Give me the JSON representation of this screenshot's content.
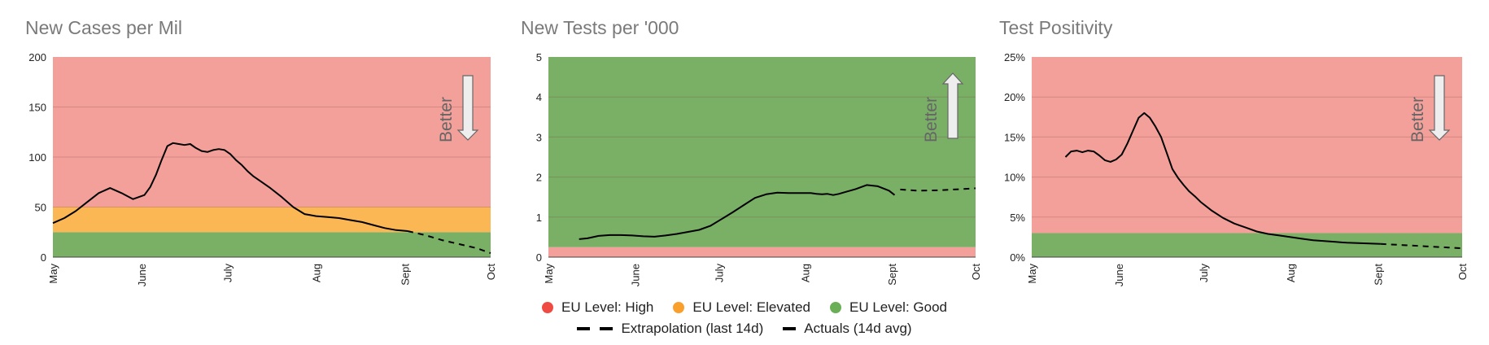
{
  "colors": {
    "high": "#f4a09a",
    "elevated": "#fcb755",
    "good": "#79b066",
    "high_dot": "#ef4b42",
    "elevated_dot": "#f9a02c",
    "good_dot": "#6aaf55",
    "title": "#7a7a7a",
    "line": "#000000"
  },
  "chart_data": [
    {
      "type": "line",
      "title": "New Cases per Mil",
      "ylim": [
        0,
        200
      ],
      "yticks": [
        0,
        50,
        100,
        150,
        200
      ],
      "ytick_labels": [
        "0",
        "50",
        "100",
        "150",
        "200"
      ],
      "xlim": [
        0,
        153
      ],
      "xticks": [
        0,
        31,
        61,
        92,
        123,
        153
      ],
      "xtick_labels": [
        "May",
        "June",
        "July",
        "Aug",
        "Sept",
        "Oct"
      ],
      "bands": [
        {
          "level": "good",
          "from": 0,
          "to": 25
        },
        {
          "level": "elevated",
          "from": 25,
          "to": 50
        },
        {
          "level": "high",
          "from": 50,
          "to": 200
        }
      ],
      "arrow": {
        "label": "Better",
        "direction": "down"
      },
      "series": [
        {
          "style": "solid",
          "x": [
            0,
            4,
            8,
            12,
            16,
            20,
            24,
            28,
            32,
            34,
            36,
            38,
            40,
            42,
            44,
            46,
            48,
            49,
            50,
            52,
            54,
            56,
            58,
            60,
            62,
            64,
            66,
            68,
            70,
            72,
            76,
            80,
            84,
            88,
            92,
            96,
            100,
            104,
            108,
            112,
            116,
            120,
            124
          ],
          "y": [
            34,
            39,
            46,
            55,
            64,
            69,
            64,
            58,
            62,
            70,
            82,
            97,
            111,
            114,
            113,
            112,
            113,
            111,
            109,
            106,
            105,
            107,
            108,
            107,
            103,
            97,
            92,
            86,
            81,
            77,
            69,
            60,
            50,
            43,
            41,
            40,
            39,
            37,
            35,
            32,
            29,
            27,
            26
          ]
        },
        {
          "style": "dashed",
          "x": [
            124,
            130,
            136,
            142,
            148,
            153
          ],
          "y": [
            26,
            22,
            17,
            13,
            9,
            4
          ]
        }
      ]
    },
    {
      "type": "line",
      "title": "New Tests per '000",
      "ylim": [
        0,
        5
      ],
      "yticks": [
        0,
        1,
        2,
        3,
        4,
        5
      ],
      "ytick_labels": [
        "0",
        "1",
        "2",
        "3",
        "4",
        "5"
      ],
      "xlim": [
        0,
        153
      ],
      "xticks": [
        0,
        31,
        61,
        92,
        123,
        153
      ],
      "xtick_labels": [
        "May",
        "June",
        "July",
        "Aug",
        "Sept",
        "Oct"
      ],
      "bands": [
        {
          "level": "high",
          "from": 0,
          "to": 0.25
        },
        {
          "level": "good",
          "from": 0.25,
          "to": 5
        }
      ],
      "arrow": {
        "label": "Better",
        "direction": "up"
      },
      "series": [
        {
          "style": "solid",
          "x": [
            11,
            14,
            18,
            22,
            26,
            30,
            34,
            38,
            42,
            46,
            50,
            54,
            58,
            62,
            66,
            70,
            74,
            78,
            82,
            86,
            90,
            94,
            96,
            98,
            100,
            102,
            104,
            106,
            110,
            112,
            114,
            118,
            122,
            124
          ],
          "y": [
            0.45,
            0.47,
            0.53,
            0.55,
            0.55,
            0.54,
            0.52,
            0.51,
            0.54,
            0.58,
            0.63,
            0.68,
            0.78,
            0.95,
            1.12,
            1.3,
            1.48,
            1.57,
            1.61,
            1.6,
            1.6,
            1.6,
            1.58,
            1.57,
            1.58,
            1.55,
            1.58,
            1.62,
            1.7,
            1.75,
            1.8,
            1.77,
            1.66,
            1.55
          ]
        },
        {
          "style": "dashed",
          "x": [
            126,
            132,
            140,
            148,
            153
          ],
          "y": [
            1.69,
            1.66,
            1.67,
            1.7,
            1.72
          ]
        }
      ]
    },
    {
      "type": "line",
      "title": "Test Positivity",
      "ylim": [
        0,
        25
      ],
      "yticks": [
        0,
        5,
        10,
        15,
        20,
        25
      ],
      "ytick_labels": [
        "0%",
        "5%",
        "10%",
        "15%",
        "20%",
        "25%"
      ],
      "xlim": [
        0,
        153
      ],
      "xticks": [
        0,
        31,
        61,
        92,
        123,
        153
      ],
      "xtick_labels": [
        "May",
        "June",
        "July",
        "Aug",
        "Sept",
        "Oct"
      ],
      "bands": [
        {
          "level": "good",
          "from": 0,
          "to": 3
        },
        {
          "level": "high",
          "from": 3,
          "to": 25
        }
      ],
      "arrow": {
        "label": "Better",
        "direction": "down"
      },
      "series": [
        {
          "style": "solid",
          "x": [
            12,
            14,
            16,
            18,
            20,
            22,
            24,
            26,
            28,
            30,
            32,
            34,
            36,
            38,
            40,
            42,
            44,
            46,
            48,
            50,
            52,
            54,
            56,
            58,
            60,
            64,
            68,
            72,
            76,
            80,
            84,
            88,
            92,
            96,
            100,
            104,
            108,
            112,
            116,
            120,
            124
          ],
          "y": [
            12.5,
            13.2,
            13.3,
            13.1,
            13.3,
            13.2,
            12.7,
            12.1,
            11.9,
            12.2,
            12.8,
            14.2,
            15.8,
            17.4,
            18.0,
            17.4,
            16.3,
            15.0,
            13.0,
            11.0,
            9.9,
            9.0,
            8.2,
            7.6,
            6.9,
            5.8,
            4.9,
            4.2,
            3.7,
            3.2,
            2.9,
            2.7,
            2.5,
            2.3,
            2.1,
            2.0,
            1.9,
            1.8,
            1.75,
            1.7,
            1.65
          ]
        },
        {
          "style": "dashed",
          "x": [
            124,
            132,
            140,
            148,
            153
          ],
          "y": [
            1.65,
            1.5,
            1.35,
            1.2,
            1.1
          ]
        }
      ]
    }
  ],
  "legend": {
    "row1": [
      {
        "level": "high",
        "label": "EU Level: High"
      },
      {
        "level": "elevated",
        "label": "EU Level: Elevated"
      },
      {
        "level": "good",
        "label": "EU Level: Good"
      }
    ],
    "row2": [
      {
        "style": "dashed",
        "label": "Extrapolation (last 14d)"
      },
      {
        "style": "solid",
        "label": "Actuals (14d avg)"
      }
    ]
  }
}
